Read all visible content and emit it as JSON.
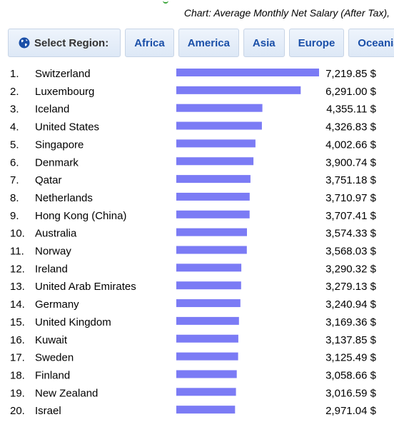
{
  "title": "Chart: Average Monthly Net Salary (After Tax),",
  "region_bar": {
    "select_label": "Select Region:",
    "regions": [
      "Africa",
      "America",
      "Asia",
      "Europe",
      "Oceania"
    ]
  },
  "colors": {
    "bar": "#7b7bf5",
    "link": "#1a4fa8",
    "select_text": "#333333"
  },
  "chart_data": {
    "type": "bar",
    "orientation": "horizontal",
    "title": "Chart: Average Monthly Net Salary (After Tax),",
    "value_suffix": " $",
    "rows": [
      {
        "rank": "1.",
        "name": "Switzerland",
        "value": 7219.85,
        "label": "7,219.85 $"
      },
      {
        "rank": "2.",
        "name": "Luxembourg",
        "value": 6291.0,
        "label": "6,291.00 $"
      },
      {
        "rank": "3.",
        "name": "Iceland",
        "value": 4355.11,
        "label": "4,355.11 $"
      },
      {
        "rank": "4.",
        "name": "United States",
        "value": 4326.83,
        "label": "4,326.83 $"
      },
      {
        "rank": "5.",
        "name": "Singapore",
        "value": 4002.66,
        "label": "4,002.66 $"
      },
      {
        "rank": "6.",
        "name": "Denmark",
        "value": 3900.74,
        "label": "3,900.74 $"
      },
      {
        "rank": "7.",
        "name": "Qatar",
        "value": 3751.18,
        "label": "3,751.18 $"
      },
      {
        "rank": "8.",
        "name": "Netherlands",
        "value": 3710.97,
        "label": "3,710.97 $"
      },
      {
        "rank": "9.",
        "name": "Hong Kong (China)",
        "value": 3707.41,
        "label": "3,707.41 $"
      },
      {
        "rank": "10.",
        "name": "Australia",
        "value": 3574.33,
        "label": "3,574.33 $"
      },
      {
        "rank": "11.",
        "name": "Norway",
        "value": 3568.03,
        "label": "3,568.03 $"
      },
      {
        "rank": "12.",
        "name": "Ireland",
        "value": 3290.32,
        "label": "3,290.32 $"
      },
      {
        "rank": "13.",
        "name": "United Arab Emirates",
        "value": 3279.13,
        "label": "3,279.13 $"
      },
      {
        "rank": "14.",
        "name": "Germany",
        "value": 3240.94,
        "label": "3,240.94 $"
      },
      {
        "rank": "15.",
        "name": "United Kingdom",
        "value": 3169.36,
        "label": "3,169.36 $"
      },
      {
        "rank": "16.",
        "name": "Kuwait",
        "value": 3137.85,
        "label": "3,137.85 $"
      },
      {
        "rank": "17.",
        "name": "Sweden",
        "value": 3125.49,
        "label": "3,125.49 $"
      },
      {
        "rank": "18.",
        "name": "Finland",
        "value": 3058.66,
        "label": "3,058.66 $"
      },
      {
        "rank": "19.",
        "name": "New Zealand",
        "value": 3016.59,
        "label": "3,016.59 $"
      },
      {
        "rank": "20.",
        "name": "Israel",
        "value": 2971.04,
        "label": "2,971.04 $"
      }
    ]
  }
}
